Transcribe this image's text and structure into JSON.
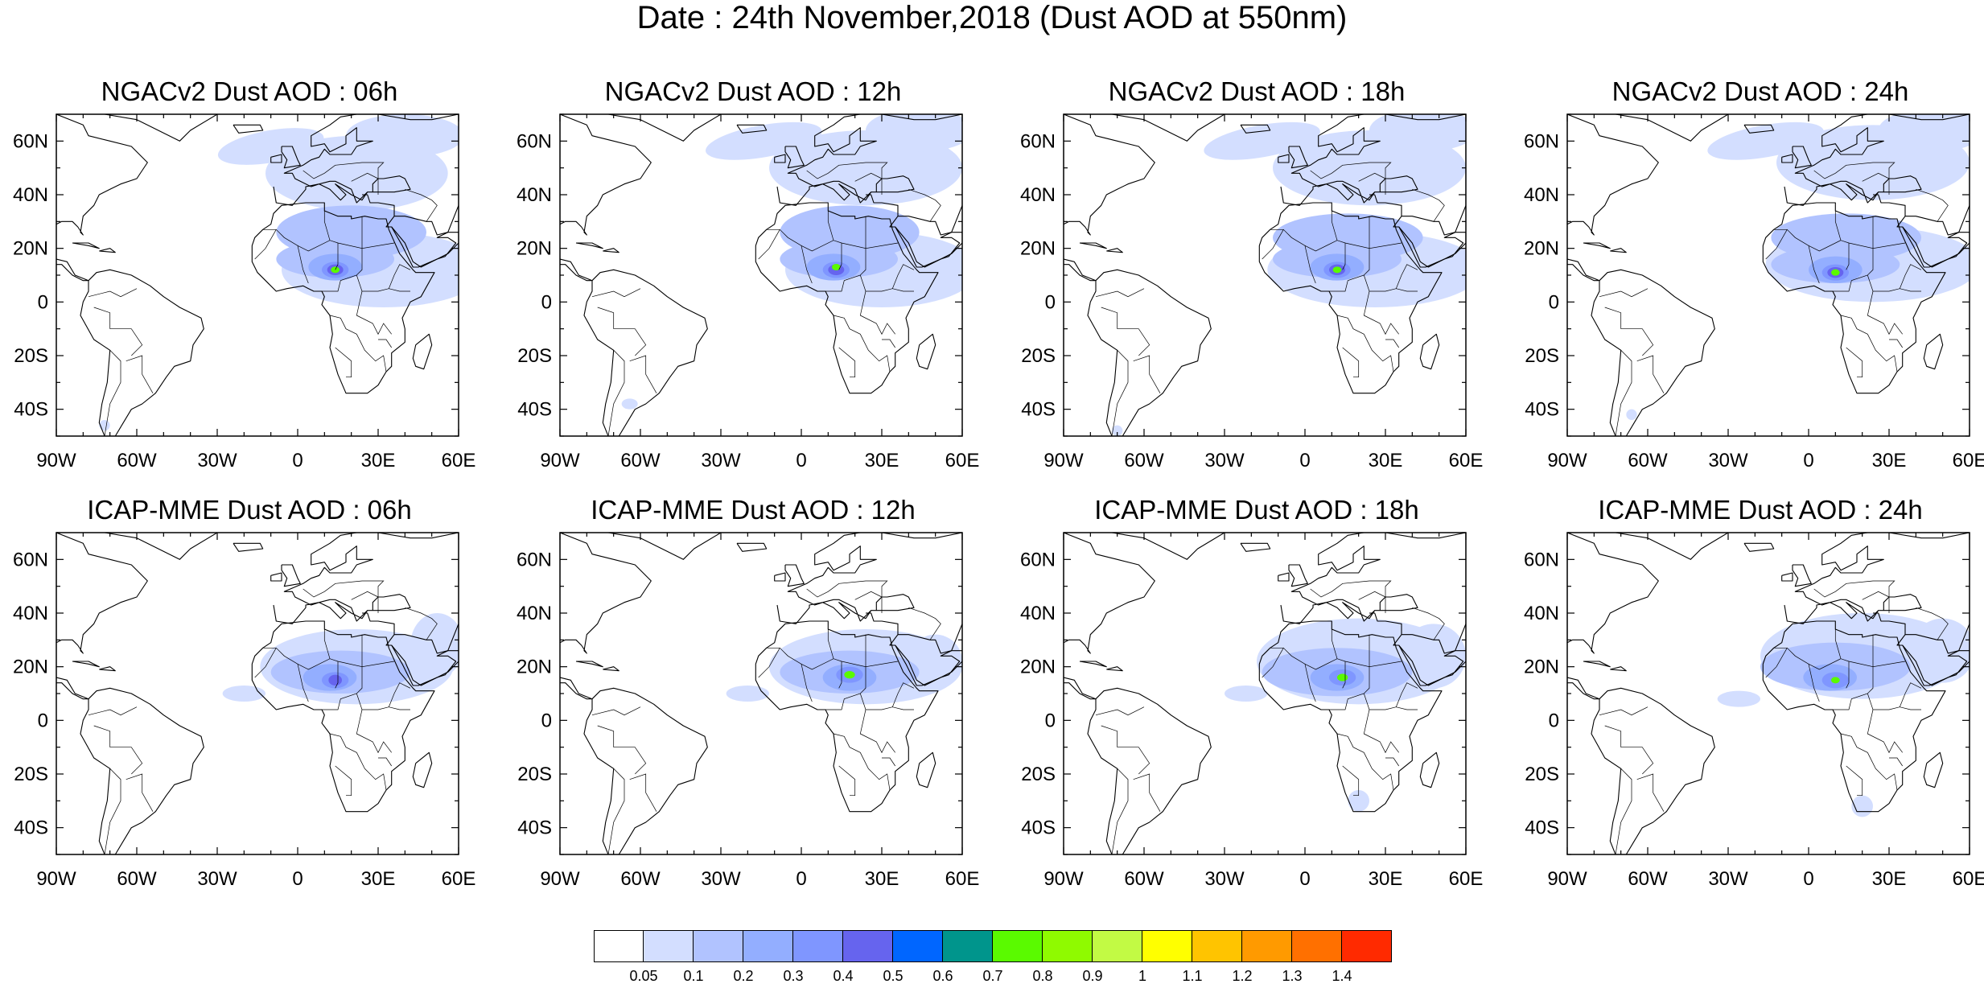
{
  "title": "Date : 24th November,2018 (Dust AOD at 550nm)",
  "panels": [
    {
      "title": "NGACv2 Dust AOD : 06h",
      "model": "ngac",
      "variant": 0
    },
    {
      "title": "NGACv2 Dust AOD : 12h",
      "model": "ngac",
      "variant": 1
    },
    {
      "title": "NGACv2 Dust AOD : 18h",
      "model": "ngac",
      "variant": 2
    },
    {
      "title": "NGACv2 Dust AOD : 24h",
      "model": "ngac",
      "variant": 3
    },
    {
      "title": "ICAP-MME Dust AOD : 06h",
      "model": "icap",
      "variant": 0
    },
    {
      "title": "ICAP-MME Dust AOD : 12h",
      "model": "icap",
      "variant": 1
    },
    {
      "title": "ICAP-MME Dust AOD : 18h",
      "model": "icap",
      "variant": 2
    },
    {
      "title": "ICAP-MME Dust AOD : 24h",
      "model": "icap",
      "variant": 3
    }
  ],
  "map": {
    "lon_range": [
      -90,
      60
    ],
    "lat_range": [
      -50,
      70
    ],
    "lon_ticks": [
      {
        "value": -90,
        "label": "90W"
      },
      {
        "value": -60,
        "label": "60W"
      },
      {
        "value": -30,
        "label": "30W"
      },
      {
        "value": 0,
        "label": "0"
      },
      {
        "value": 30,
        "label": "30E"
      },
      {
        "value": 60,
        "label": "60E"
      }
    ],
    "lat_ticks": [
      {
        "value": 60,
        "label": "60N"
      },
      {
        "value": 40,
        "label": "40N"
      },
      {
        "value": 20,
        "label": "20N"
      },
      {
        "value": 0,
        "label": "0"
      },
      {
        "value": -20,
        "label": "20S"
      },
      {
        "value": -40,
        "label": "40S"
      }
    ]
  },
  "colorbar": {
    "colors": [
      "#ffffff",
      "#d3deff",
      "#b1c3ff",
      "#93aeff",
      "#7f96ff",
      "#6664ee",
      "#0066ff",
      "#00958c",
      "#5afa00",
      "#8ffa00",
      "#c2fa44",
      "#ffff00",
      "#ffc400",
      "#ff9a00",
      "#ff7000",
      "#ff2a00"
    ],
    "labels": [
      "0.05",
      "0.1",
      "0.2",
      "0.3",
      "0.4",
      "0.5",
      "0.6",
      "0.7",
      "0.8",
      "0.9",
      "1",
      "1.1",
      "1.2",
      "1.3",
      "1.4"
    ]
  },
  "coastline_color": "#000000"
}
